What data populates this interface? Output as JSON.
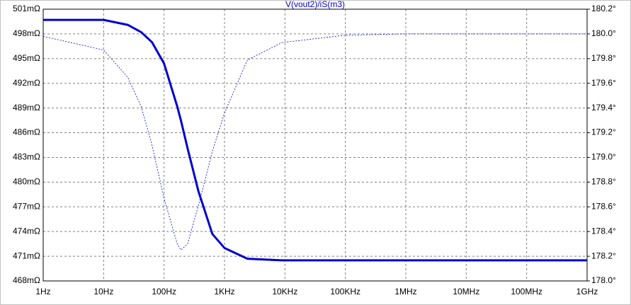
{
  "chart_data": {
    "type": "line",
    "title": "V(vout2)/iS(m3)",
    "xlog": true,
    "grid": true,
    "x": [
      1,
      10,
      25,
      42,
      63,
      100,
      165,
      190,
      245,
      370,
      630,
      1000,
      2400,
      9000,
      100000,
      1000000,
      1000000000
    ],
    "series": [
      {
        "color": "#0000d0",
        "style": "solid",
        "values": [
          499.7,
          499.7,
          499.1,
          498.2,
          497.0,
          494.4,
          489.2,
          487.5,
          484.1,
          478.9,
          473.7,
          472.0,
          470.7,
          470.5,
          470.5,
          470.5,
          470.5
        ]
      },
      {
        "color": "#0000d0",
        "style": "dashed",
        "axis": "y2",
        "values": [
          179.98,
          179.87,
          179.65,
          179.41,
          179.1,
          178.67,
          178.3,
          178.25,
          178.3,
          178.61,
          179.05,
          179.36,
          179.79,
          179.93,
          179.99,
          180.0,
          180.0
        ]
      }
    ],
    "xlim": [
      1,
      1000000000
    ],
    "xticks": [
      {
        "value": 1,
        "label": "1Hz"
      },
      {
        "value": 10,
        "label": "10Hz"
      },
      {
        "value": 100,
        "label": "100Hz"
      },
      {
        "value": 1000,
        "label": "1KHz"
      },
      {
        "value": 10000,
        "label": "10KHz"
      },
      {
        "value": 100000,
        "label": "100KHz"
      },
      {
        "value": 1000000,
        "label": "1MHz"
      },
      {
        "value": 10000000,
        "label": "10MHz"
      },
      {
        "value": 100000000,
        "label": "100MHz"
      },
      {
        "value": 1000000000,
        "label": "1GHz"
      }
    ],
    "ylim": [
      468,
      501
    ],
    "yticks": [
      {
        "value": 468,
        "label": "468mΩ"
      },
      {
        "value": 471,
        "label": "471mΩ"
      },
      {
        "value": 474,
        "label": "474mΩ"
      },
      {
        "value": 477,
        "label": "477mΩ"
      },
      {
        "value": 480,
        "label": "480mΩ"
      },
      {
        "value": 483,
        "label": "483mΩ"
      },
      {
        "value": 486,
        "label": "486mΩ"
      },
      {
        "value": 489,
        "label": "489mΩ"
      },
      {
        "value": 492,
        "label": "492mΩ"
      },
      {
        "value": 495,
        "label": "495mΩ"
      },
      {
        "value": 498,
        "label": "498mΩ"
      },
      {
        "value": 501,
        "label": "501mΩ"
      }
    ],
    "y2lim": [
      178.0,
      180.2
    ],
    "y2ticks": [
      {
        "value": 178.0,
        "label": "178.0°"
      },
      {
        "value": 178.2,
        "label": "178.2°"
      },
      {
        "value": 178.4,
        "label": "178.4°"
      },
      {
        "value": 178.6,
        "label": "178.6°"
      },
      {
        "value": 178.8,
        "label": "178.8°"
      },
      {
        "value": 179.0,
        "label": "179.0°"
      },
      {
        "value": 179.2,
        "label": "179.2°"
      },
      {
        "value": 179.4,
        "label": "179.4°"
      },
      {
        "value": 179.6,
        "label": "179.6°"
      },
      {
        "value": 179.8,
        "label": "179.8°"
      },
      {
        "value": 180.0,
        "label": "180.0°"
      },
      {
        "value": 180.2,
        "label": "180.2°"
      }
    ]
  }
}
